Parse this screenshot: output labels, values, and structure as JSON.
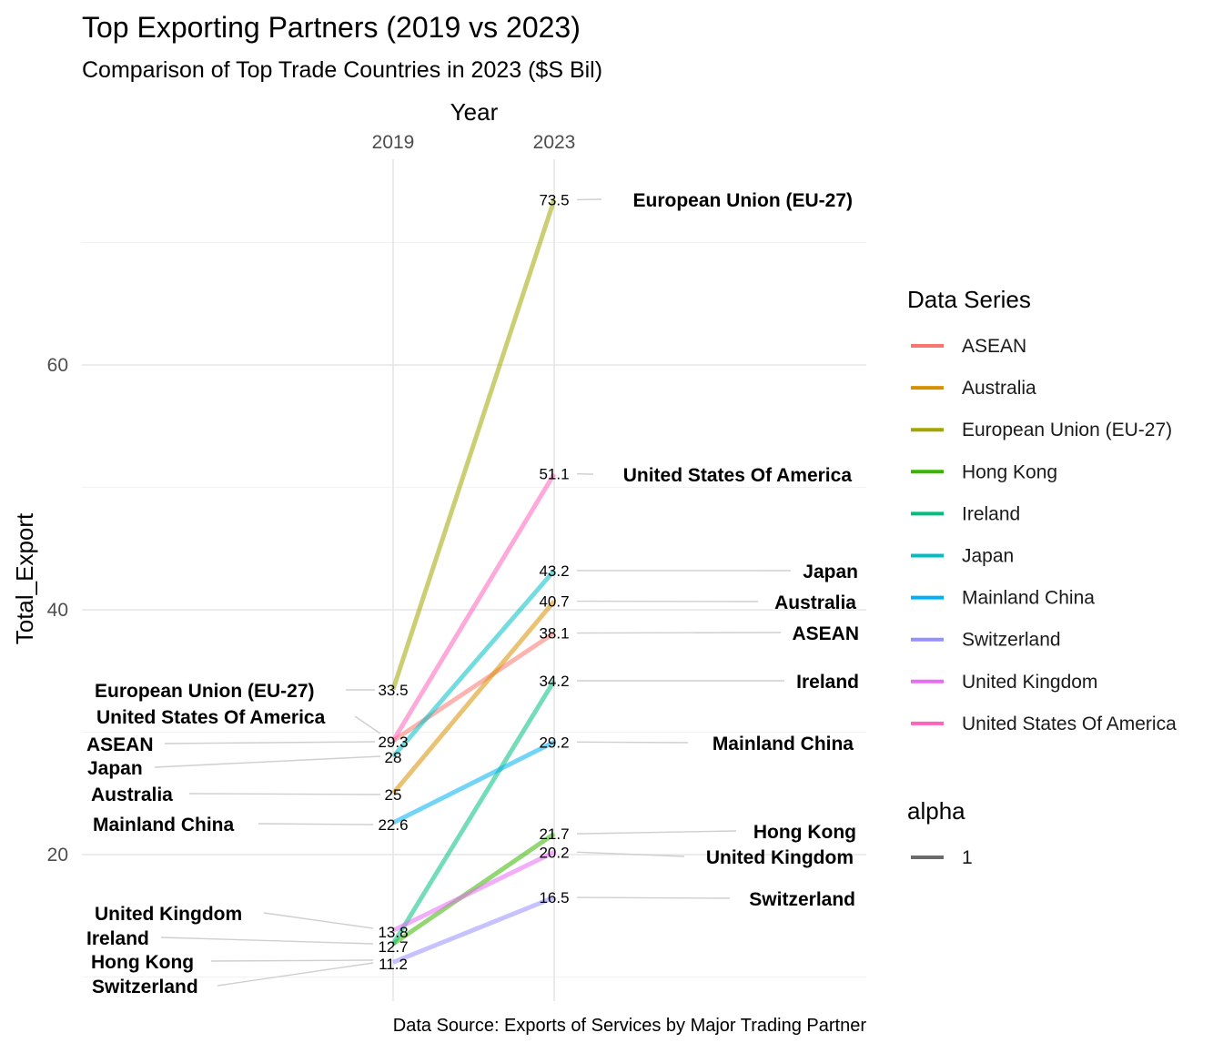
{
  "chart_data": {
    "type": "line",
    "title": "Top Exporting Partners (2019 vs 2023)",
    "subtitle": "Comparison of Top Trade Countries in 2023 ($S Bil)",
    "xlabel": "Year",
    "ylabel": "Total_Export",
    "caption": "Data Source: Exports of Services by Major Trading Partner",
    "x": [
      "2019",
      "2023"
    ],
    "x_ticks": [
      "2019",
      "2023"
    ],
    "y_ticks": [
      20,
      40,
      60
    ],
    "y_tick_labels": [
      "20",
      "40",
      "60"
    ],
    "ylim": [
      10,
      75
    ],
    "grid": true,
    "legend_position": "right",
    "legend_title": "Data Series",
    "alpha_legend": {
      "title": "alpha",
      "label": "1",
      "color": "#6b6b6b"
    },
    "series": [
      {
        "name": "ASEAN",
        "values": [
          29.3,
          38.1
        ],
        "labels": [
          "29.3",
          "38.1"
        ],
        "color": "#F8766D"
      },
      {
        "name": "Australia",
        "values": [
          25,
          40.7
        ],
        "labels": [
          "25",
          "40.7"
        ],
        "color": "#D89000"
      },
      {
        "name": "European Union (EU-27)",
        "values": [
          33.5,
          73.5
        ],
        "labels": [
          "33.5",
          "73.5"
        ],
        "color": "#A3A500"
      },
      {
        "name": "Hong Kong",
        "values": [
          12.7,
          21.7
        ],
        "labels": [
          "12.7",
          "21.7"
        ],
        "color": "#39B600"
      },
      {
        "name": "Ireland",
        "values": [
          12.7,
          34.2
        ],
        "labels": [
          "12.7",
          "34.2"
        ],
        "color": "#00BF7D"
      },
      {
        "name": "Japan",
        "values": [
          28,
          43.2
        ],
        "labels": [
          "28",
          "43.2"
        ],
        "color": "#00BFC4"
      },
      {
        "name": "Mainland China",
        "values": [
          22.6,
          29.2
        ],
        "labels": [
          "22.6",
          "29.2"
        ],
        "color": "#00B0F6"
      },
      {
        "name": "Switzerland",
        "values": [
          11.2,
          16.5
        ],
        "labels": [
          "11.2",
          "16.5"
        ],
        "color": "#9590FF"
      },
      {
        "name": "United Kingdom",
        "values": [
          13.8,
          20.2
        ],
        "labels": [
          "13.8",
          "20.2"
        ],
        "color": "#E76BF3"
      },
      {
        "name": "United States Of America",
        "values": [
          29.3,
          51.1
        ],
        "labels": [
          "29.3",
          "51.1"
        ],
        "color": "#FF62BC"
      }
    ],
    "left_label_order": [
      "European Union (EU-27)",
      "United States Of America",
      "ASEAN",
      "Japan",
      "Australia",
      "Mainland China",
      "United Kingdom",
      "Ireland",
      "Hong Kong",
      "Switzerland"
    ],
    "right_label_order": [
      "European Union (EU-27)",
      "United States Of America",
      "Japan",
      "Australia",
      "ASEAN",
      "Ireland",
      "Mainland China",
      "Hong Kong",
      "United Kingdom",
      "Switzerland"
    ],
    "left_value_labels": [
      "33.5",
      "29.3",
      "28",
      "25",
      "22.6",
      "13.8",
      "12.7",
      "11.2"
    ]
  }
}
